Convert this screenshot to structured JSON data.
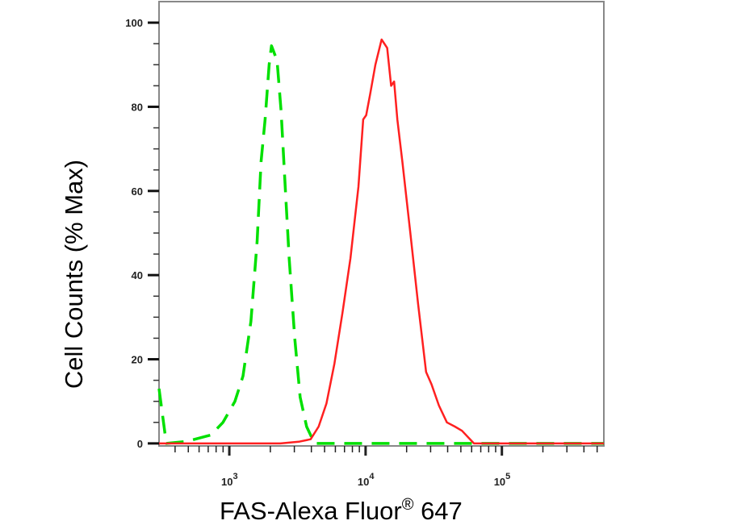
{
  "chart_data": {
    "type": "line",
    "title": "",
    "xlabel": "FAS-Alexa Fluor",
    "xlabel_superscript": "®",
    "xlabel_suffix": " 647",
    "ylabel": "Cell Counts (% Max)",
    "x_scale": "log",
    "xlim": [
      305,
      560000
    ],
    "ylim": [
      -0.6,
      105
    ],
    "x_ticks": [
      {
        "value": 1000,
        "base": "10",
        "exp": "3"
      },
      {
        "value": 10000,
        "base": "10",
        "exp": "4"
      },
      {
        "value": 100000,
        "base": "10",
        "exp": "5"
      }
    ],
    "y_ticks": [
      0,
      20,
      40,
      60,
      80,
      100
    ],
    "grid": false,
    "legend": "none",
    "series": [
      {
        "color": "#00e000",
        "style": "dashed",
        "points": [
          [
            305,
            13
          ],
          [
            345,
            0
          ],
          [
            490,
            0.5
          ],
          [
            733,
            2
          ],
          [
            898,
            5
          ],
          [
            1100,
            10
          ],
          [
            1260,
            16
          ],
          [
            1440,
            29
          ],
          [
            1600,
            48
          ],
          [
            1710,
            67
          ],
          [
            1830,
            77
          ],
          [
            1960,
            90
          ],
          [
            2040,
            94.5
          ],
          [
            2240,
            91
          ],
          [
            2400,
            79
          ],
          [
            2570,
            61
          ],
          [
            2750,
            44
          ],
          [
            3020,
            25
          ],
          [
            3310,
            11
          ],
          [
            3690,
            4
          ],
          [
            4220,
            0
          ],
          [
            560000,
            0
          ]
        ]
      },
      {
        "color": "#ff2020",
        "style": "solid",
        "points": [
          [
            305,
            0
          ],
          [
            2370,
            0
          ],
          [
            3230,
            0.4
          ],
          [
            3950,
            1
          ],
          [
            4520,
            4
          ],
          [
            5160,
            9.5
          ],
          [
            5910,
            19
          ],
          [
            6760,
            31
          ],
          [
            7740,
            44
          ],
          [
            8860,
            61
          ],
          [
            9600,
            77
          ],
          [
            10100,
            78
          ],
          [
            10800,
            83
          ],
          [
            11800,
            90
          ],
          [
            13100,
            96
          ],
          [
            14400,
            94
          ],
          [
            15400,
            85
          ],
          [
            16200,
            86
          ],
          [
            17100,
            77
          ],
          [
            18600,
            67
          ],
          [
            21300,
            50
          ],
          [
            24300,
            33
          ],
          [
            27800,
            17
          ],
          [
            30500,
            14
          ],
          [
            34500,
            9
          ],
          [
            39500,
            5
          ],
          [
            45200,
            4
          ],
          [
            51000,
            3
          ],
          [
            62400,
            0
          ],
          [
            560000,
            0
          ]
        ]
      }
    ]
  }
}
